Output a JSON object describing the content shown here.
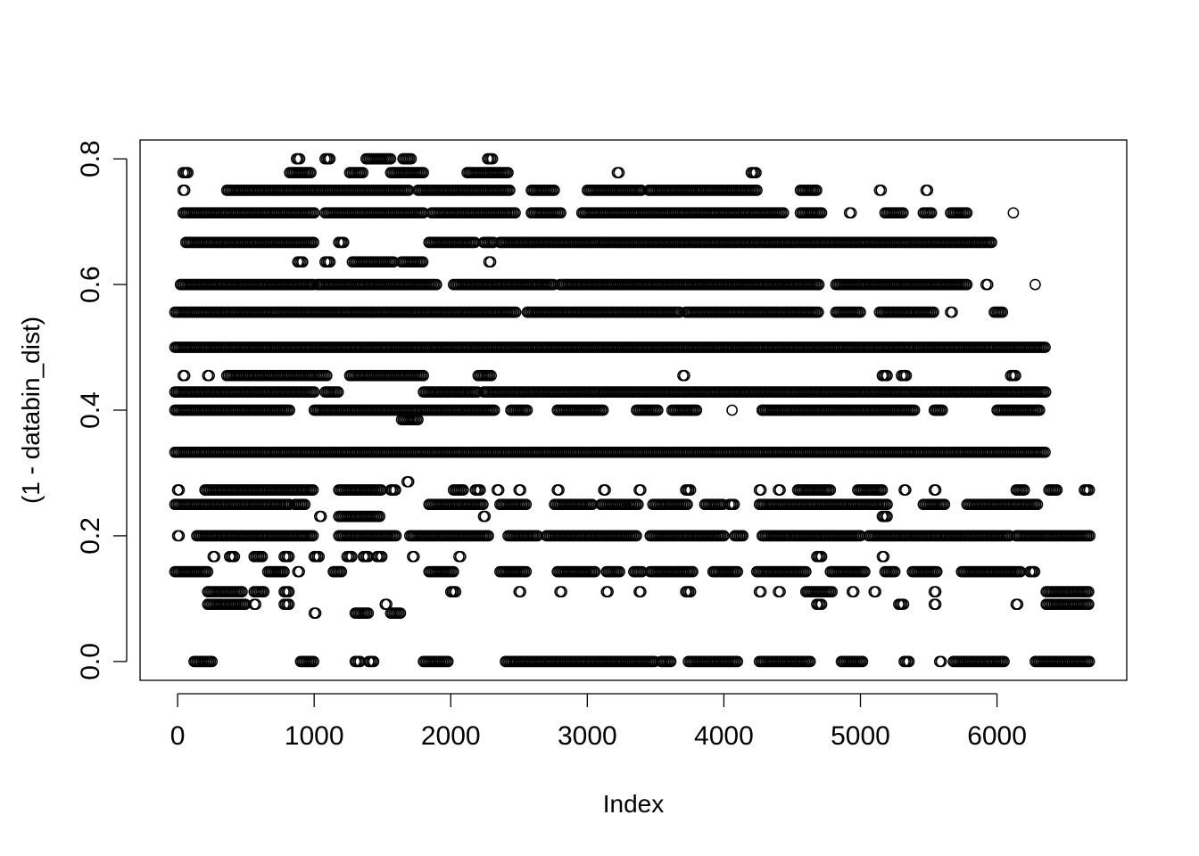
{
  "chart_data": {
    "type": "scatter",
    "xlabel": "Index",
    "ylabel": "(1 - databin_dist)",
    "xlim": [
      -275,
      6950
    ],
    "ylim": [
      -0.03,
      0.83
    ],
    "x_ticks": [
      "0",
      "1000",
      "2000",
      "3000",
      "4000",
      "5000",
      "6000"
    ],
    "x_tick_values": [
      0,
      1000,
      2000,
      3000,
      4000,
      5000,
      6000
    ],
    "y_ticks": [
      "0.0",
      "0.2",
      "0.4",
      "0.6",
      "0.8"
    ],
    "y_tick_values": [
      0,
      0.2,
      0.4,
      0.6,
      0.8
    ],
    "marker": "open-circle",
    "grid": false,
    "n_points": 6680,
    "levels": [
      {
        "y": 0.8,
        "spans": [
          [
            870,
            900
          ],
          [
            1080,
            1120
          ],
          [
            1380,
            1560
          ],
          [
            1650,
            1720
          ],
          [
            2270,
            2310
          ]
        ]
      },
      {
        "y": 0.778,
        "spans": [
          [
            40,
            80
          ],
          [
            820,
            980
          ],
          [
            1260,
            1360
          ],
          [
            1560,
            1800
          ],
          [
            2120,
            2420
          ],
          [
            3220,
            3240
          ],
          [
            4200,
            4240
          ]
        ]
      },
      {
        "y": 0.75,
        "spans": [
          [
            40,
            60
          ],
          [
            360,
            1700
          ],
          [
            1760,
            2440
          ],
          [
            2590,
            2760
          ],
          [
            3000,
            3400
          ],
          [
            3450,
            4250
          ],
          [
            4560,
            4680
          ],
          [
            5140,
            5160
          ],
          [
            5480,
            5500
          ]
        ]
      },
      {
        "y": 0.714,
        "spans": [
          [
            40,
            1000
          ],
          [
            1080,
            1800
          ],
          [
            1860,
            2480
          ],
          [
            2590,
            2810
          ],
          [
            2960,
            4440
          ],
          [
            4560,
            4720
          ],
          [
            4920,
            4940
          ],
          [
            5180,
            5320
          ],
          [
            5460,
            5520
          ],
          [
            5660,
            5780
          ],
          [
            6120,
            6130
          ]
        ]
      },
      {
        "y": 0.667,
        "spans": [
          [
            60,
            1000
          ],
          [
            1180,
            1220
          ],
          [
            1840,
            2180
          ],
          [
            2240,
            2320
          ],
          [
            2360,
            5960
          ]
        ]
      },
      {
        "y": 0.636,
        "spans": [
          [
            880,
            920
          ],
          [
            1080,
            1120
          ],
          [
            1280,
            1580
          ],
          [
            1640,
            1800
          ],
          [
            2280,
            2300
          ]
        ]
      },
      {
        "y": 0.6,
        "spans": [
          [
            20,
            1000
          ],
          [
            1020,
            1900
          ],
          [
            2020,
            2760
          ],
          [
            2800,
            4700
          ],
          [
            4820,
            5780
          ],
          [
            5920,
            5940
          ],
          [
            6280,
            6290
          ]
        ]
      },
      {
        "y": 0.556,
        "spans": [
          [
            -20,
            2480
          ],
          [
            2560,
            3680
          ],
          [
            3720,
            4700
          ],
          [
            4820,
            5000
          ],
          [
            5140,
            5540
          ],
          [
            5660,
            5680
          ],
          [
            5980,
            6040
          ]
        ]
      },
      {
        "y": 0.5,
        "spans": [
          [
            -20,
            6360
          ]
        ]
      },
      {
        "y": 0.455,
        "spans": [
          [
            40,
            60
          ],
          [
            220,
            240
          ],
          [
            360,
            1000
          ],
          [
            1020,
            1100
          ],
          [
            1260,
            1800
          ],
          [
            2200,
            2300
          ],
          [
            3700,
            3720
          ],
          [
            5160,
            5200
          ],
          [
            5300,
            5340
          ],
          [
            6100,
            6140
          ]
        ]
      },
      {
        "y": 0.429,
        "spans": [
          [
            -20,
            1000
          ],
          [
            1080,
            1180
          ],
          [
            1800,
            2200
          ],
          [
            2240,
            6360
          ]
        ]
      },
      {
        "y": 0.4,
        "spans": [
          [
            -20,
            820
          ],
          [
            1000,
            2320
          ],
          [
            2440,
            2560
          ],
          [
            2780,
            3120
          ],
          [
            3360,
            3520
          ],
          [
            3620,
            3800
          ],
          [
            4060,
            4070
          ],
          [
            4280,
            4280
          ],
          [
            4280,
            5400
          ],
          [
            5540,
            5600
          ],
          [
            6000,
            6320
          ]
        ]
      },
      {
        "y": 0.385,
        "spans": [
          [
            1640,
            1760
          ]
        ]
      },
      {
        "y": 0.333,
        "spans": [
          [
            -20,
            6360
          ]
        ]
      },
      {
        "y": 0.286,
        "spans": [
          [
            1680,
            1700
          ]
        ]
      },
      {
        "y": 0.273,
        "spans": [
          [
            0,
            20
          ],
          [
            200,
            1000
          ],
          [
            1180,
            1500
          ],
          [
            1560,
            1600
          ],
          [
            2020,
            2100
          ],
          [
            2180,
            2220
          ],
          [
            2340,
            2360
          ],
          [
            2500,
            2520
          ],
          [
            2780,
            2800
          ],
          [
            3120,
            3140
          ],
          [
            3380,
            3400
          ],
          [
            3720,
            3760
          ],
          [
            4260,
            4280
          ],
          [
            4400,
            4420
          ],
          [
            4540,
            4780
          ],
          [
            4980,
            5160
          ],
          [
            5320,
            5340
          ],
          [
            5540,
            5560
          ],
          [
            6140,
            6200
          ],
          [
            6380,
            6440
          ],
          [
            6640,
            6680
          ]
        ]
      },
      {
        "y": 0.25,
        "spans": [
          [
            -20,
            820
          ],
          [
            860,
            940
          ],
          [
            1840,
            2240
          ],
          [
            2360,
            2560
          ],
          [
            2760,
            3040
          ],
          [
            3100,
            3280
          ],
          [
            3300,
            3380
          ],
          [
            3480,
            3740
          ],
          [
            3860,
            4000
          ],
          [
            4040,
            4080
          ],
          [
            4260,
            5200
          ],
          [
            5460,
            5620
          ],
          [
            5780,
            6300
          ]
        ]
      },
      {
        "y": 0.231,
        "spans": [
          [
            1040,
            1060
          ],
          [
            1180,
            1480
          ],
          [
            2240,
            2260
          ],
          [
            5160,
            5200
          ]
        ]
      },
      {
        "y": 0.2,
        "spans": [
          [
            0,
            20
          ],
          [
            140,
            1000
          ],
          [
            1180,
            1600
          ],
          [
            1700,
            2280
          ],
          [
            2420,
            2640
          ],
          [
            2700,
            3360
          ],
          [
            3460,
            4000
          ],
          [
            4080,
            4140
          ],
          [
            4280,
            5000
          ],
          [
            5060,
            6100
          ],
          [
            6140,
            6680
          ]
        ]
      },
      {
        "y": 0.167,
        "spans": [
          [
            260,
            280
          ],
          [
            380,
            420
          ],
          [
            560,
            620
          ],
          [
            780,
            820
          ],
          [
            1000,
            1040
          ],
          [
            1240,
            1280
          ],
          [
            1360,
            1400
          ],
          [
            1460,
            1500
          ],
          [
            1720,
            1740
          ],
          [
            2060,
            2080
          ],
          [
            4680,
            4720
          ],
          [
            5160,
            5180
          ]
        ]
      },
      {
        "y": 0.143,
        "spans": [
          [
            -20,
            220
          ],
          [
            660,
            780
          ],
          [
            880,
            900
          ],
          [
            1140,
            1200
          ],
          [
            1840,
            2020
          ],
          [
            2360,
            2560
          ],
          [
            2780,
            3060
          ],
          [
            3140,
            3240
          ],
          [
            3340,
            3400
          ],
          [
            3460,
            3780
          ],
          [
            3920,
            4100
          ],
          [
            4240,
            4600
          ],
          [
            4780,
            5040
          ],
          [
            5180,
            5260
          ],
          [
            5380,
            5560
          ],
          [
            5740,
            6180
          ],
          [
            6240,
            6280
          ]
        ]
      },
      {
        "y": 0.111,
        "spans": [
          [
            220,
            480
          ],
          [
            560,
            640
          ],
          [
            780,
            820
          ],
          [
            2000,
            2040
          ],
          [
            2500,
            2520
          ],
          [
            2800,
            2820
          ],
          [
            3140,
            3160
          ],
          [
            3380,
            3400
          ],
          [
            3720,
            3760
          ],
          [
            4260,
            4280
          ],
          [
            4400,
            4420
          ],
          [
            4600,
            4800
          ],
          [
            4940,
            4960
          ],
          [
            5100,
            5120
          ],
          [
            5540,
            5560
          ],
          [
            6360,
            6680
          ]
        ]
      },
      {
        "y": 0.091,
        "spans": [
          [
            220,
            500
          ],
          [
            560,
            580
          ],
          [
            780,
            820
          ],
          [
            1520,
            1540
          ],
          [
            4680,
            4720
          ],
          [
            5280,
            5320
          ],
          [
            5540,
            5560
          ],
          [
            6140,
            6160
          ],
          [
            6360,
            6680
          ]
        ]
      },
      {
        "y": 0.077,
        "spans": [
          [
            1000,
            1020
          ],
          [
            1300,
            1400
          ],
          [
            1560,
            1640
          ]
        ]
      },
      {
        "y": 0.0,
        "spans": [
          [
            120,
            260
          ],
          [
            900,
            1000
          ],
          [
            1300,
            1340
          ],
          [
            1400,
            1440
          ],
          [
            1800,
            1980
          ],
          [
            2400,
            3500
          ],
          [
            3540,
            3620
          ],
          [
            3740,
            4100
          ],
          [
            4260,
            4640
          ],
          [
            4860,
            5020
          ],
          [
            5320,
            5360
          ],
          [
            5580,
            5600
          ],
          [
            5680,
            6060
          ],
          [
            6280,
            6680
          ]
        ]
      }
    ]
  }
}
